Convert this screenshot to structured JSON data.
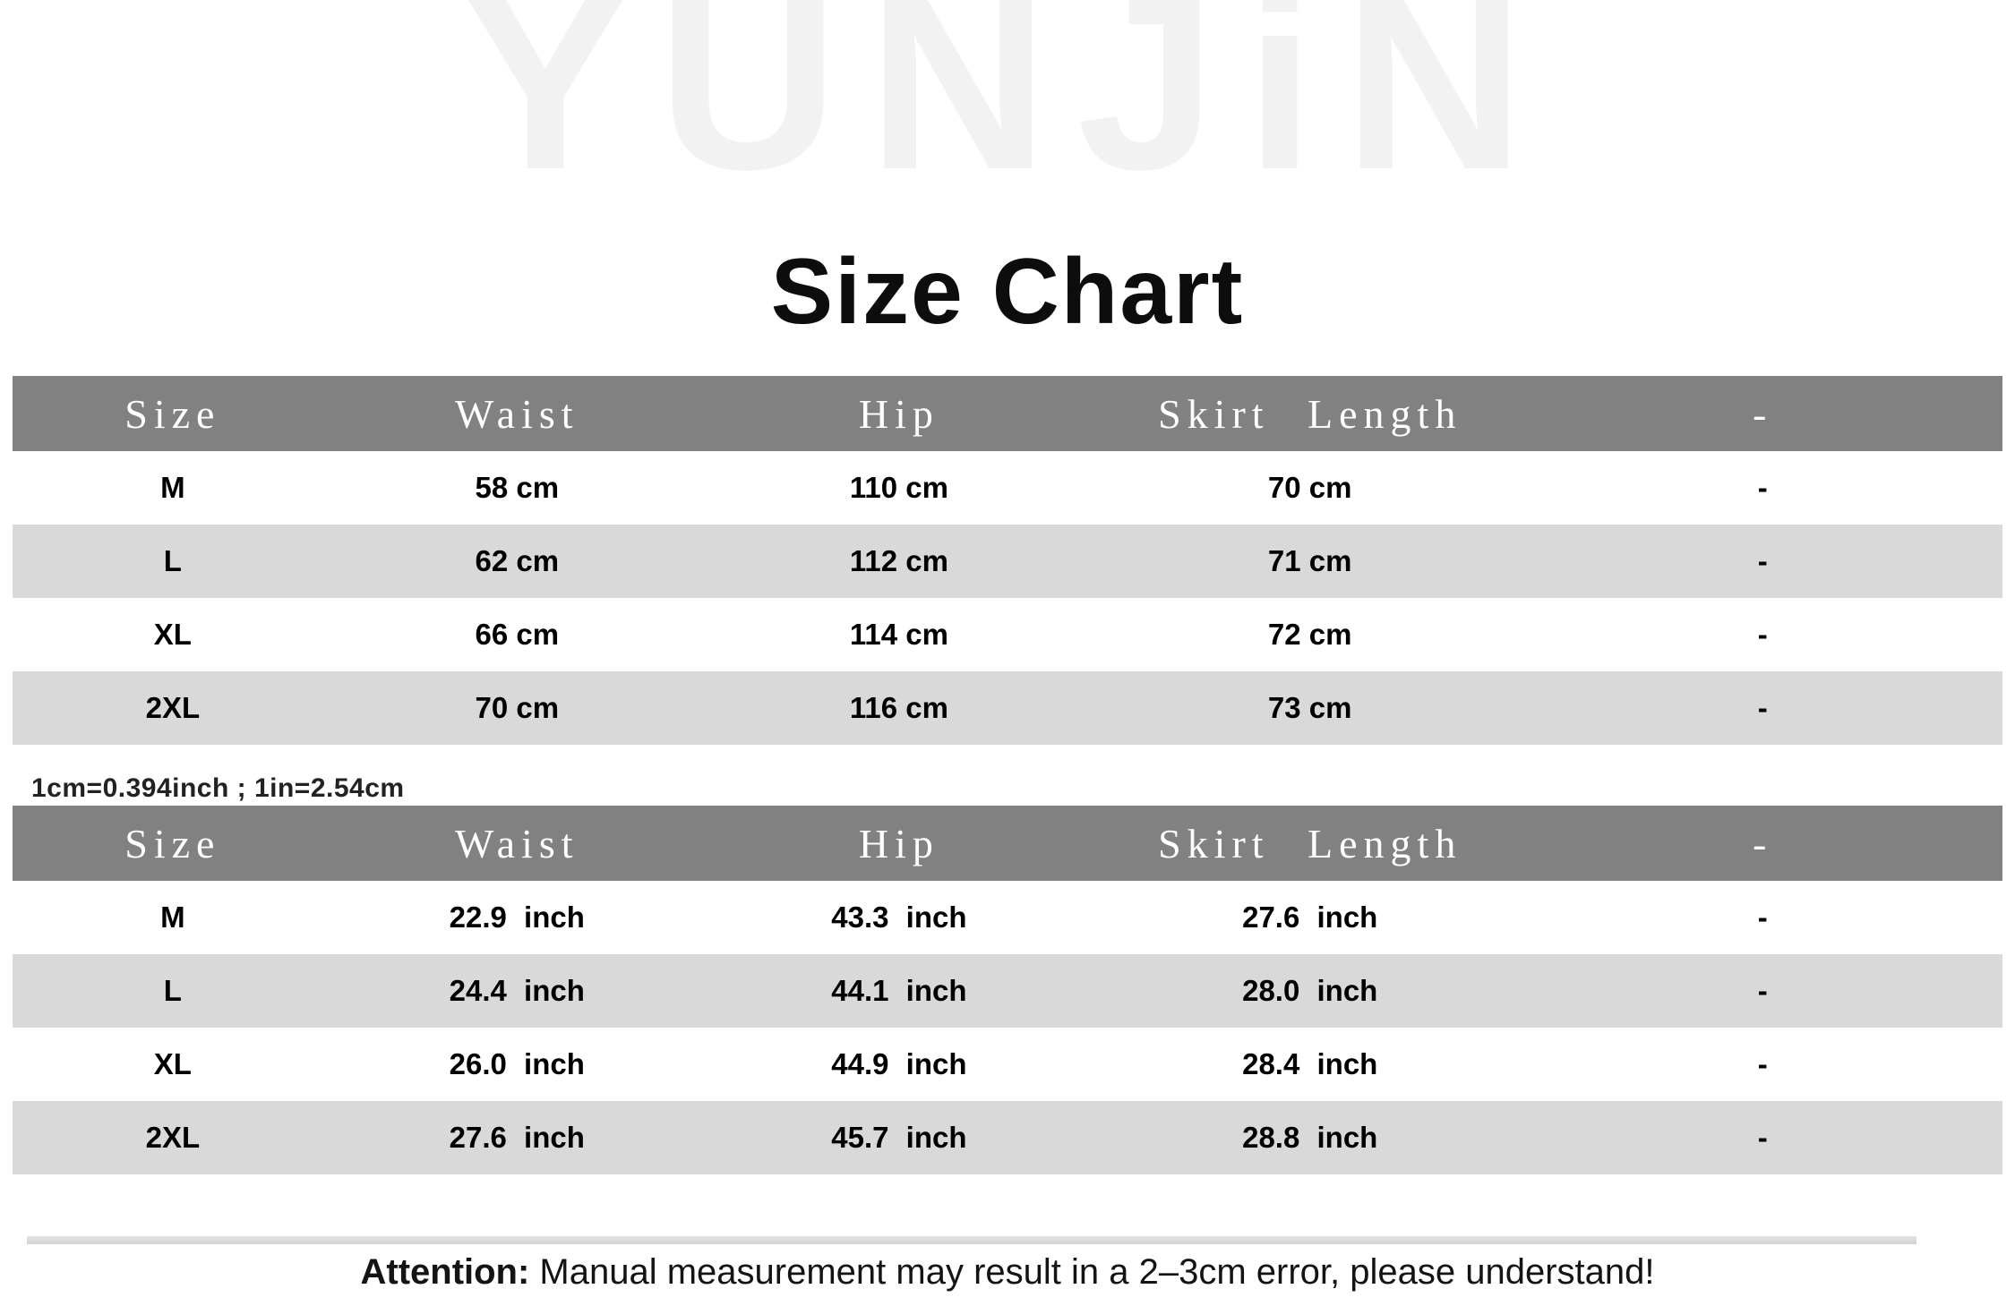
{
  "watermark": "YUNJiN",
  "title": "Size Chart",
  "conversion_note": "1cm=0.394inch ; 1in=2.54cm",
  "table_cm": {
    "headers": [
      "Size",
      "Waist",
      "Hip",
      "Skirt Length",
      "-"
    ],
    "rows": [
      [
        "M",
        "58 cm",
        "110 cm",
        "70 cm",
        "-"
      ],
      [
        "L",
        "62 cm",
        "112 cm",
        "71 cm",
        "-"
      ],
      [
        "XL",
        "66 cm",
        "114 cm",
        "72 cm",
        "-"
      ],
      [
        "2XL",
        "70 cm",
        "116 cm",
        "73 cm",
        "-"
      ]
    ]
  },
  "table_inch": {
    "headers": [
      "Size",
      "Waist",
      "Hip",
      "Skirt Length",
      "-"
    ],
    "rows": [
      [
        "M",
        "22.9 inch",
        "43.3 inch",
        "27.6 inch",
        "-"
      ],
      [
        "L",
        "24.4 inch",
        "44.1 inch",
        "28.0 inch",
        "-"
      ],
      [
        "XL",
        "26.0 inch",
        "44.9 inch",
        "28.4 inch",
        "-"
      ],
      [
        "2XL",
        "27.6 inch",
        "45.7 inch",
        "28.8 inch",
        "-"
      ]
    ]
  },
  "footer": {
    "attention_label": "Attention:",
    "attention_text": " Manual measurement may result in a 2–3cm error, please understand!"
  },
  "colors": {
    "header_bg": "#818181",
    "header_text": "#ffffff",
    "row_alt_bg": "#d9d9d9",
    "watermark": "#f2f2f2"
  }
}
